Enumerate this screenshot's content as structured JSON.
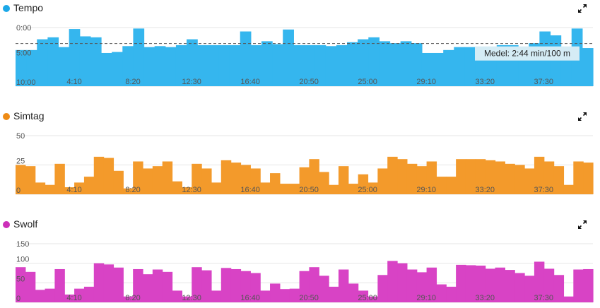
{
  "chart_data": [
    {
      "type": "bar",
      "title": "Tempo",
      "color": "#35b6ee",
      "dot_color": "#1ba8e8",
      "y_tick_labels": [
        "0:00",
        "5:00",
        "10:00"
      ],
      "y_tick_values": [
        0,
        300,
        600
      ],
      "ylim": [
        0,
        600
      ],
      "y_inverted": true,
      "unit": "sec/100 m",
      "x_tick_labels": [
        "4:10",
        "8:20",
        "12:30",
        "16:40",
        "20:50",
        "25:00",
        "29:10",
        "33:20",
        "37:30"
      ],
      "x_tick_values": [
        250,
        500,
        750,
        1000,
        1250,
        1500,
        1750,
        2000,
        2250
      ],
      "xlim": [
        0,
        2460
      ],
      "average": {
        "value": 164,
        "label": "Medel: 2:44 min/100 m"
      },
      "values": [
        230,
        230,
        120,
        100,
        200,
        15,
        90,
        100,
        260,
        250,
        190,
        10,
        200,
        190,
        200,
        180,
        120,
        180,
        180,
        180,
        180,
        40,
        180,
        140,
        170,
        20,
        180,
        180,
        180,
        190,
        180,
        150,
        120,
        100,
        140,
        160,
        140,
        160,
        260,
        260,
        230,
        200,
        200,
        260,
        250,
        180,
        180,
        240,
        160,
        40,
        80,
        260,
        10,
        210
      ],
      "value_format": "pace"
    },
    {
      "type": "bar",
      "title": "Simtag",
      "color": "#f39a2b",
      "dot_color": "#ee8b15",
      "y_tick_labels": [
        "50",
        "25",
        "0"
      ],
      "y_tick_values": [
        50,
        25,
        0
      ],
      "ylim": [
        0,
        50
      ],
      "unit": "",
      "x_tick_labels": [
        "4:10",
        "8:20",
        "12:30",
        "16:40",
        "20:50",
        "25:00",
        "29:10",
        "33:20",
        "37:30"
      ],
      "x_tick_values": [
        250,
        500,
        750,
        1000,
        1250,
        1500,
        1750,
        2000,
        2250
      ],
      "xlim": [
        0,
        2460
      ],
      "values": [
        25,
        24,
        10,
        8,
        26,
        6,
        10,
        15,
        32,
        31,
        20,
        5,
        28,
        22,
        24,
        28,
        11,
        6,
        26,
        22,
        10,
        29,
        27,
        25,
        22,
        10,
        18,
        9,
        9,
        23,
        30,
        19,
        8,
        24,
        9,
        17,
        10,
        22,
        32,
        30,
        26,
        24,
        28,
        15,
        15,
        30,
        30,
        30,
        29,
        28,
        26,
        25,
        22,
        32,
        28,
        24,
        8,
        28,
        27
      ],
      "value_format": "int"
    },
    {
      "type": "bar",
      "title": "Swolf",
      "color": "#d843c5",
      "dot_color": "#cc2fb8",
      "y_tick_labels": [
        "150",
        "100",
        "50",
        "0"
      ],
      "y_tick_values": [
        150,
        100,
        50,
        0
      ],
      "ylim": [
        0,
        150
      ],
      "unit": "",
      "x_tick_labels": [
        "4:10",
        "8:20",
        "12:30",
        "16:40",
        "20:50",
        "25:00",
        "29:10",
        "33:20",
        "37:30"
      ],
      "x_tick_values": [
        250,
        500,
        750,
        1000,
        1250,
        1500,
        1750,
        2000,
        2250
      ],
      "xlim": [
        0,
        2460
      ],
      "values": [
        90,
        78,
        32,
        35,
        85,
        20,
        35,
        40,
        100,
        97,
        89,
        15,
        85,
        72,
        84,
        78,
        30,
        15,
        90,
        82,
        30,
        88,
        85,
        80,
        75,
        30,
        48,
        34,
        35,
        80,
        90,
        68,
        40,
        84,
        48,
        30,
        15,
        70,
        106,
        100,
        84,
        77,
        89,
        46,
        40,
        96,
        95,
        94,
        86,
        89,
        83,
        75,
        68,
        104,
        86,
        70,
        15,
        84,
        85
      ],
      "value_format": "int"
    }
  ],
  "icons": {
    "expand": "expand-arrows-icon"
  }
}
